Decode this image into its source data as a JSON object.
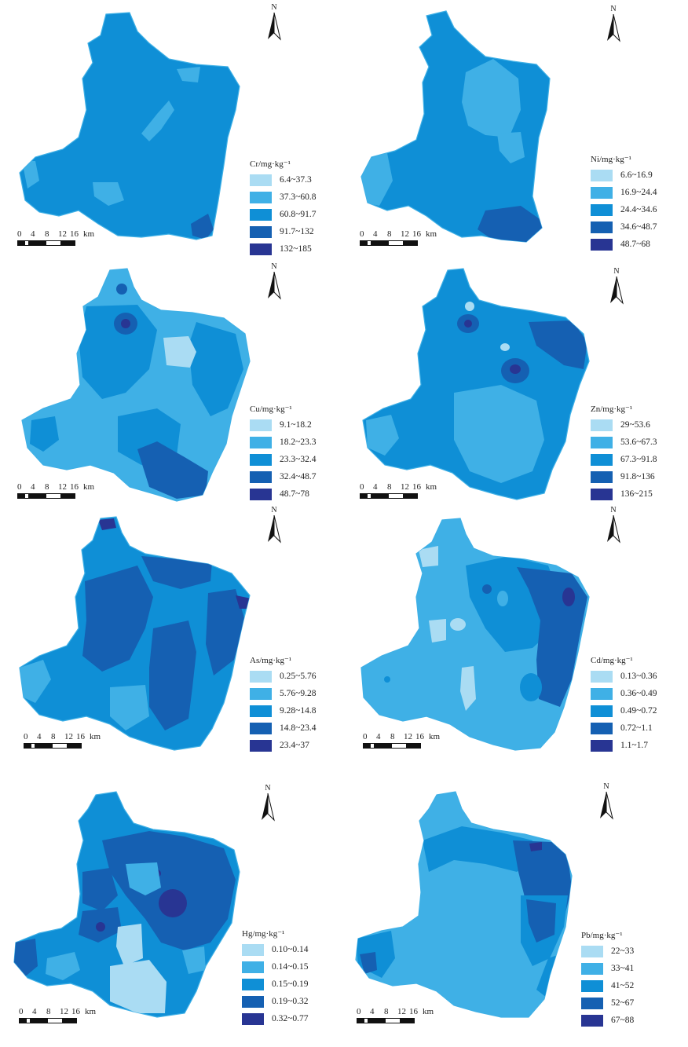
{
  "scale": {
    "ticks": [
      "0",
      "4",
      "8",
      "12",
      "16"
    ],
    "unit": "km"
  },
  "north_label": "N",
  "panels": [
    {
      "element": "Cr",
      "legend_title": "Cr/mg·kg⁻¹",
      "classes": [
        "6.4~37.3",
        "37.3~60.8",
        "60.8~91.7",
        "91.7~132",
        "132~185"
      ]
    },
    {
      "element": "Ni",
      "legend_title": "Ni/mg·kg⁻¹",
      "classes": [
        "6.6~16.9",
        "16.9~24.4",
        "24.4~34.6",
        "34.6~48.7",
        "48.7~68"
      ]
    },
    {
      "element": "Cu",
      "legend_title": "Cu/mg·kg⁻¹",
      "classes": [
        "9.1~18.2",
        "18.2~23.3",
        "23.3~32.4",
        "32.4~48.7",
        "48.7~78"
      ]
    },
    {
      "element": "Zn",
      "legend_title": "Zn/mg·kg⁻¹",
      "classes": [
        "29~53.6",
        "53.6~67.3",
        "67.3~91.8",
        "91.8~136",
        "136~215"
      ]
    },
    {
      "element": "As",
      "legend_title": "As/mg·kg⁻¹",
      "classes": [
        "0.25~5.76",
        "5.76~9.28",
        "9.28~14.8",
        "14.8~23.4",
        "23.4~37"
      ]
    },
    {
      "element": "Cd",
      "legend_title": "Cd/mg·kg⁻¹",
      "classes": [
        "0.13~0.36",
        "0.36~0.49",
        "0.49~0.72",
        "0.72~1.1",
        "1.1~1.7"
      ]
    },
    {
      "element": "Hg",
      "legend_title": "Hg/mg·kg⁻¹",
      "classes": [
        "0.10~0.14",
        "0.14~0.15",
        "0.15~0.19",
        "0.19~0.32",
        "0.32~0.77"
      ]
    },
    {
      "element": "Pb",
      "legend_title": "Pb/mg·kg⁻¹",
      "classes": [
        "22~33",
        "33~41",
        "41~52",
        "52~67",
        "67~88"
      ]
    }
  ],
  "class_colors": [
    "#aadcf3",
    "#3fb0e6",
    "#0f8fd6",
    "#1560b2",
    "#283593"
  ]
}
